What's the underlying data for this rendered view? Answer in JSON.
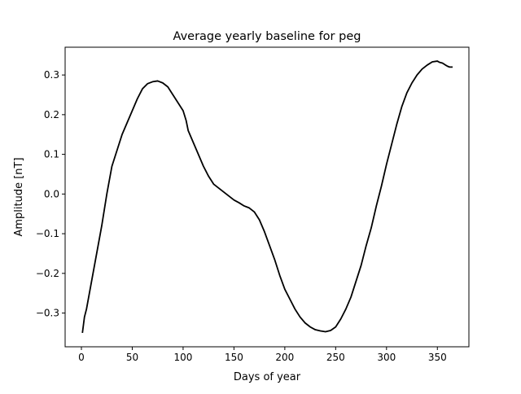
{
  "chart_data": {
    "type": "line",
    "title": "Average yearly baseline for peg",
    "xlabel": "Days of year",
    "ylabel": "Amplitude [nT]",
    "xlim": [
      -16,
      381
    ],
    "ylim": [
      -0.385,
      0.37
    ],
    "x_ticks": [
      0,
      50,
      100,
      150,
      200,
      250,
      300,
      350
    ],
    "x_tick_labels": [
      "0",
      "50",
      "100",
      "150",
      "200",
      "250",
      "300",
      "350"
    ],
    "y_ticks": [
      -0.3,
      -0.2,
      -0.1,
      0.0,
      0.1,
      0.2,
      0.3
    ],
    "y_tick_labels": [
      "−0.3",
      "−0.2",
      "−0.1",
      "0.0",
      "0.1",
      "0.2",
      "0.3"
    ],
    "grid": false,
    "series": [
      {
        "color": "#000000",
        "x": [
          1,
          3,
          5,
          10,
          15,
          20,
          25,
          30,
          35,
          40,
          45,
          50,
          55,
          60,
          65,
          70,
          75,
          80,
          85,
          90,
          95,
          100,
          103,
          105,
          110,
          115,
          120,
          125,
          130,
          135,
          140,
          145,
          150,
          155,
          160,
          165,
          170,
          175,
          180,
          185,
          190,
          195,
          200,
          205,
          210,
          215,
          220,
          225,
          230,
          235,
          240,
          245,
          250,
          255,
          260,
          265,
          270,
          275,
          280,
          285,
          290,
          295,
          300,
          305,
          310,
          315,
          320,
          325,
          330,
          335,
          340,
          345,
          350,
          352,
          355,
          358,
          360,
          362,
          365
        ],
        "y": [
          -0.35,
          -0.31,
          -0.29,
          -0.22,
          -0.15,
          -0.08,
          0.0,
          0.07,
          0.11,
          0.15,
          0.18,
          0.21,
          0.24,
          0.265,
          0.278,
          0.283,
          0.285,
          0.28,
          0.27,
          0.25,
          0.23,
          0.21,
          0.185,
          0.16,
          0.13,
          0.1,
          0.07,
          0.045,
          0.025,
          0.015,
          0.005,
          -0.005,
          -0.015,
          -0.022,
          -0.03,
          -0.035,
          -0.045,
          -0.065,
          -0.095,
          -0.13,
          -0.165,
          -0.205,
          -0.24,
          -0.265,
          -0.29,
          -0.31,
          -0.325,
          -0.335,
          -0.342,
          -0.345,
          -0.347,
          -0.344,
          -0.335,
          -0.315,
          -0.29,
          -0.26,
          -0.22,
          -0.18,
          -0.13,
          -0.085,
          -0.03,
          0.02,
          0.075,
          0.125,
          0.175,
          0.22,
          0.255,
          0.28,
          0.3,
          0.315,
          0.325,
          0.333,
          0.335,
          0.332,
          0.33,
          0.325,
          0.322,
          0.32,
          0.32
        ]
      }
    ]
  }
}
